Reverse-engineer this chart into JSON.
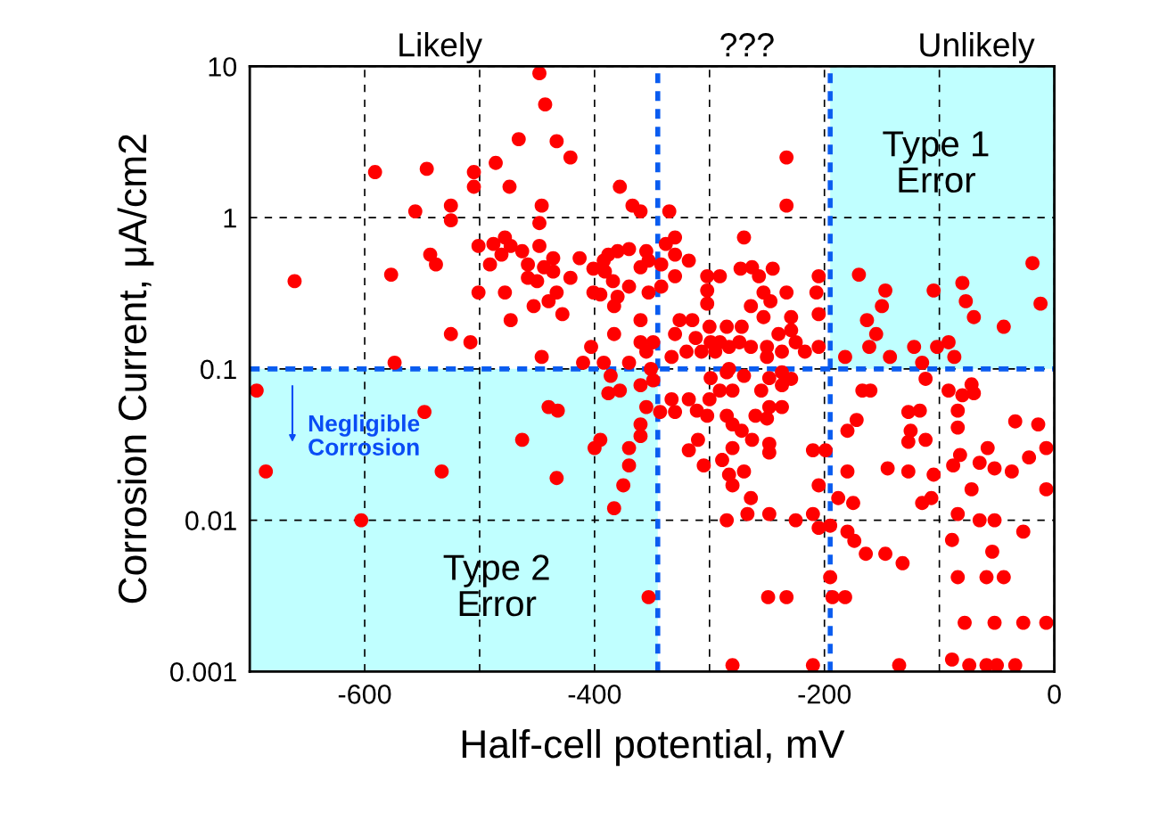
{
  "chart_data": {
    "type": "scatter",
    "xlabel": "Half-cell potential, mV",
    "ylabel": "Corrosion Current, μA/cm2",
    "log": "y",
    "grid": true,
    "marker": "circle",
    "xlim": [
      -700,
      0
    ],
    "xticks": [
      {
        "value": -700,
        "label": null
      },
      -600,
      {
        "value": -500,
        "label": null
      },
      -400,
      {
        "value": -300,
        "label": null
      },
      -200,
      {
        "value": -100,
        "label": null
      },
      0
    ],
    "ylim": [
      0.001,
      10
    ],
    "yticks": [
      0.001,
      0.01,
      0.1,
      1,
      10
    ],
    "bands": [
      {
        "axis": "x",
        "from": -195,
        "to": 0,
        "label": "Type 1\nError",
        "color": "#c0ffff"
      },
      {
        "axis": "x",
        "from": -700,
        "to": -345,
        "label": "Type 2\nError",
        "color": "#c0ffff"
      }
    ],
    "ref_lines": [
      {
        "axis": "x",
        "value": -345,
        "color": "#0a5cf0",
        "line_style": "dashed"
      },
      {
        "axis": "x",
        "value": -195,
        "color": "#0a5cf0",
        "line_style": "dashed"
      },
      {
        "axis": "y",
        "value": 0.1,
        "color": "#0a5cf0",
        "line_style": "dashed"
      }
    ],
    "annotations": [
      "Likely",
      "???",
      "Unlikely",
      "Negligible\nCorrosion"
    ],
    "series": [
      {
        "color": "#ff0000",
        "x": [
          -448,
          -443,
          -466,
          -433,
          -421,
          -486,
          -591,
          -546,
          -505,
          -505,
          -474,
          -378,
          -367,
          -360,
          -556,
          -525,
          -525,
          -446,
          -448,
          -661,
          -577,
          -543,
          -538,
          -501,
          -488,
          -478,
          -473,
          -481,
          -491,
          -463,
          -458,
          -448,
          -436,
          -444,
          -436,
          -458,
          -450,
          -421,
          -413,
          -401,
          -392,
          -388,
          -380,
          -370,
          -355,
          -360,
          -353,
          -391,
          -384,
          -501,
          -478,
          -433,
          -440,
          -453,
          -428,
          -401,
          -395,
          -380,
          -383,
          -370,
          -353,
          -473,
          -360,
          -525,
          -508,
          -383,
          -403,
          -360,
          -355,
          -349,
          -574,
          -446,
          -410,
          -392,
          -370,
          -351,
          -233,
          -233,
          -335,
          -330,
          -338,
          -330,
          -318,
          -330,
          -342,
          -342,
          -270,
          -302,
          -291,
          -273,
          -263,
          -257,
          -245,
          -205,
          -302,
          -253,
          -247,
          -233,
          -207,
          -302,
          -264,
          -205,
          -326,
          -315,
          -330,
          -312,
          -300,
          -285,
          -272,
          -253,
          -229,
          -240,
          -229,
          -225,
          -299,
          -291,
          -283,
          -274,
          -264,
          -250,
          -237,
          -217,
          -205,
          -320,
          -333,
          -307,
          -295,
          -250,
          -170,
          -147,
          -150,
          -163,
          -155,
          -161,
          -182,
          -143,
          -122,
          -115,
          -105,
          -102,
          -92,
          -87,
          -80,
          -77,
          -70,
          -44,
          -19,
          -12,
          -694,
          -686,
          -548,
          -533,
          -603,
          -440,
          -432,
          -463,
          -433,
          -386,
          -388,
          -378,
          -360,
          -349,
          -355,
          -360,
          -360,
          -395,
          -400,
          -370,
          -370,
          -375,
          -383,
          -353,
          -299,
          -285,
          -283,
          -270,
          -248,
          -237,
          -237,
          -229,
          -291,
          -280,
          -255,
          -333,
          -318,
          -300,
          -343,
          -330,
          -311,
          -302,
          -285,
          -280,
          -272,
          -260,
          -250,
          -248,
          -237,
          -310,
          -318,
          -305,
          -289,
          -280,
          -283,
          -280,
          -270,
          -263,
          -248,
          -248,
          -264,
          -267,
          -285,
          -248,
          -225,
          -210,
          -199,
          -205,
          -210,
          -205,
          -195,
          -249,
          -233,
          -280,
          -210,
          -195,
          -193,
          -182,
          -188,
          -175,
          -180,
          -172,
          -180,
          -167,
          -160,
          -112,
          -127,
          -117,
          -125,
          -127,
          -112,
          -145,
          -127,
          -105,
          -107,
          -115,
          -180,
          -174,
          -164,
          -147,
          -132,
          -135,
          -92,
          -80,
          -72,
          -70,
          -84,
          -84,
          -34,
          -14,
          -82,
          -88,
          -65,
          -58,
          -52,
          -37,
          -22,
          -7,
          -72,
          -7,
          -84,
          -65,
          -52,
          -27,
          -89,
          -54,
          -84,
          -59,
          -44,
          -78,
          -52,
          -27,
          -7,
          -89,
          -74,
          -59,
          -50,
          -34
        ],
        "values": [
          9.0,
          5.6,
          3.3,
          3.2,
          2.5,
          2.3,
          2.0,
          2.1,
          2.0,
          1.6,
          1.6,
          1.6,
          1.2,
          1.1,
          1.1,
          1.2,
          0.96,
          1.2,
          0.92,
          0.38,
          0.42,
          0.57,
          0.49,
          0.65,
          0.67,
          0.74,
          0.65,
          0.57,
          0.49,
          0.6,
          0.49,
          0.65,
          0.54,
          0.47,
          0.44,
          0.4,
          0.38,
          0.4,
          0.54,
          0.46,
          0.52,
          0.57,
          0.6,
          0.62,
          0.6,
          0.47,
          0.52,
          0.44,
          0.38,
          0.32,
          0.32,
          0.32,
          0.28,
          0.26,
          0.23,
          0.32,
          0.31,
          0.3,
          0.26,
          0.35,
          0.32,
          0.21,
          0.21,
          0.17,
          0.15,
          0.17,
          0.14,
          0.15,
          0.13,
          0.15,
          0.11,
          0.12,
          0.11,
          0.11,
          0.11,
          0.1,
          2.5,
          1.2,
          1.1,
          0.74,
          0.67,
          0.57,
          0.52,
          0.41,
          0.49,
          0.35,
          0.74,
          0.41,
          0.41,
          0.46,
          0.47,
          0.41,
          0.46,
          0.41,
          0.33,
          0.32,
          0.28,
          0.32,
          0.32,
          0.27,
          0.26,
          0.23,
          0.21,
          0.21,
          0.17,
          0.16,
          0.19,
          0.19,
          0.19,
          0.22,
          0.22,
          0.17,
          0.18,
          0.15,
          0.15,
          0.15,
          0.14,
          0.15,
          0.14,
          0.14,
          0.13,
          0.13,
          0.14,
          0.13,
          0.12,
          0.13,
          0.13,
          0.12,
          0.42,
          0.33,
          0.26,
          0.21,
          0.17,
          0.14,
          0.12,
          0.12,
          0.14,
          0.11,
          0.33,
          0.14,
          0.15,
          0.12,
          0.37,
          0.28,
          0.22,
          0.19,
          0.5,
          0.27,
          0.072,
          0.021,
          0.052,
          0.021,
          0.01,
          0.056,
          0.053,
          0.034,
          0.019,
          0.09,
          0.069,
          0.072,
          0.078,
          0.084,
          0.056,
          0.043,
          0.036,
          0.034,
          0.03,
          0.03,
          0.023,
          0.017,
          0.012,
          0.0031,
          0.087,
          0.095,
          0.1,
          0.09,
          0.087,
          0.095,
          0.078,
          0.086,
          0.072,
          0.072,
          0.072,
          0.063,
          0.063,
          0.063,
          0.052,
          0.052,
          0.053,
          0.049,
          0.049,
          0.043,
          0.039,
          0.049,
          0.047,
          0.056,
          0.056,
          0.034,
          0.029,
          0.023,
          0.025,
          0.03,
          0.02,
          0.017,
          0.021,
          0.034,
          0.032,
          0.028,
          0.014,
          0.011,
          0.01,
          0.011,
          0.01,
          0.029,
          0.029,
          0.017,
          0.011,
          0.0089,
          0.0092,
          0.0031,
          0.0031,
          0.0011,
          0.0011,
          0.0042,
          0.0031,
          0.0031,
          0.014,
          0.013,
          0.039,
          0.046,
          0.021,
          0.072,
          0.072,
          0.086,
          0.052,
          0.053,
          0.039,
          0.033,
          0.034,
          0.022,
          0.021,
          0.02,
          0.014,
          0.013,
          0.0084,
          0.0073,
          0.006,
          0.006,
          0.0052,
          0.0011,
          0.072,
          0.067,
          0.079,
          0.069,
          0.053,
          0.041,
          0.045,
          0.043,
          0.027,
          0.023,
          0.024,
          0.03,
          0.022,
          0.021,
          0.026,
          0.03,
          0.016,
          0.016,
          0.011,
          0.01,
          0.01,
          0.0084,
          0.0074,
          0.0062,
          0.0042,
          0.0042,
          0.0042,
          0.0021,
          0.0021,
          0.0021,
          0.0021,
          0.0012,
          0.0011,
          0.0011,
          0.0011,
          0.0011
        ]
      }
    ]
  }
}
